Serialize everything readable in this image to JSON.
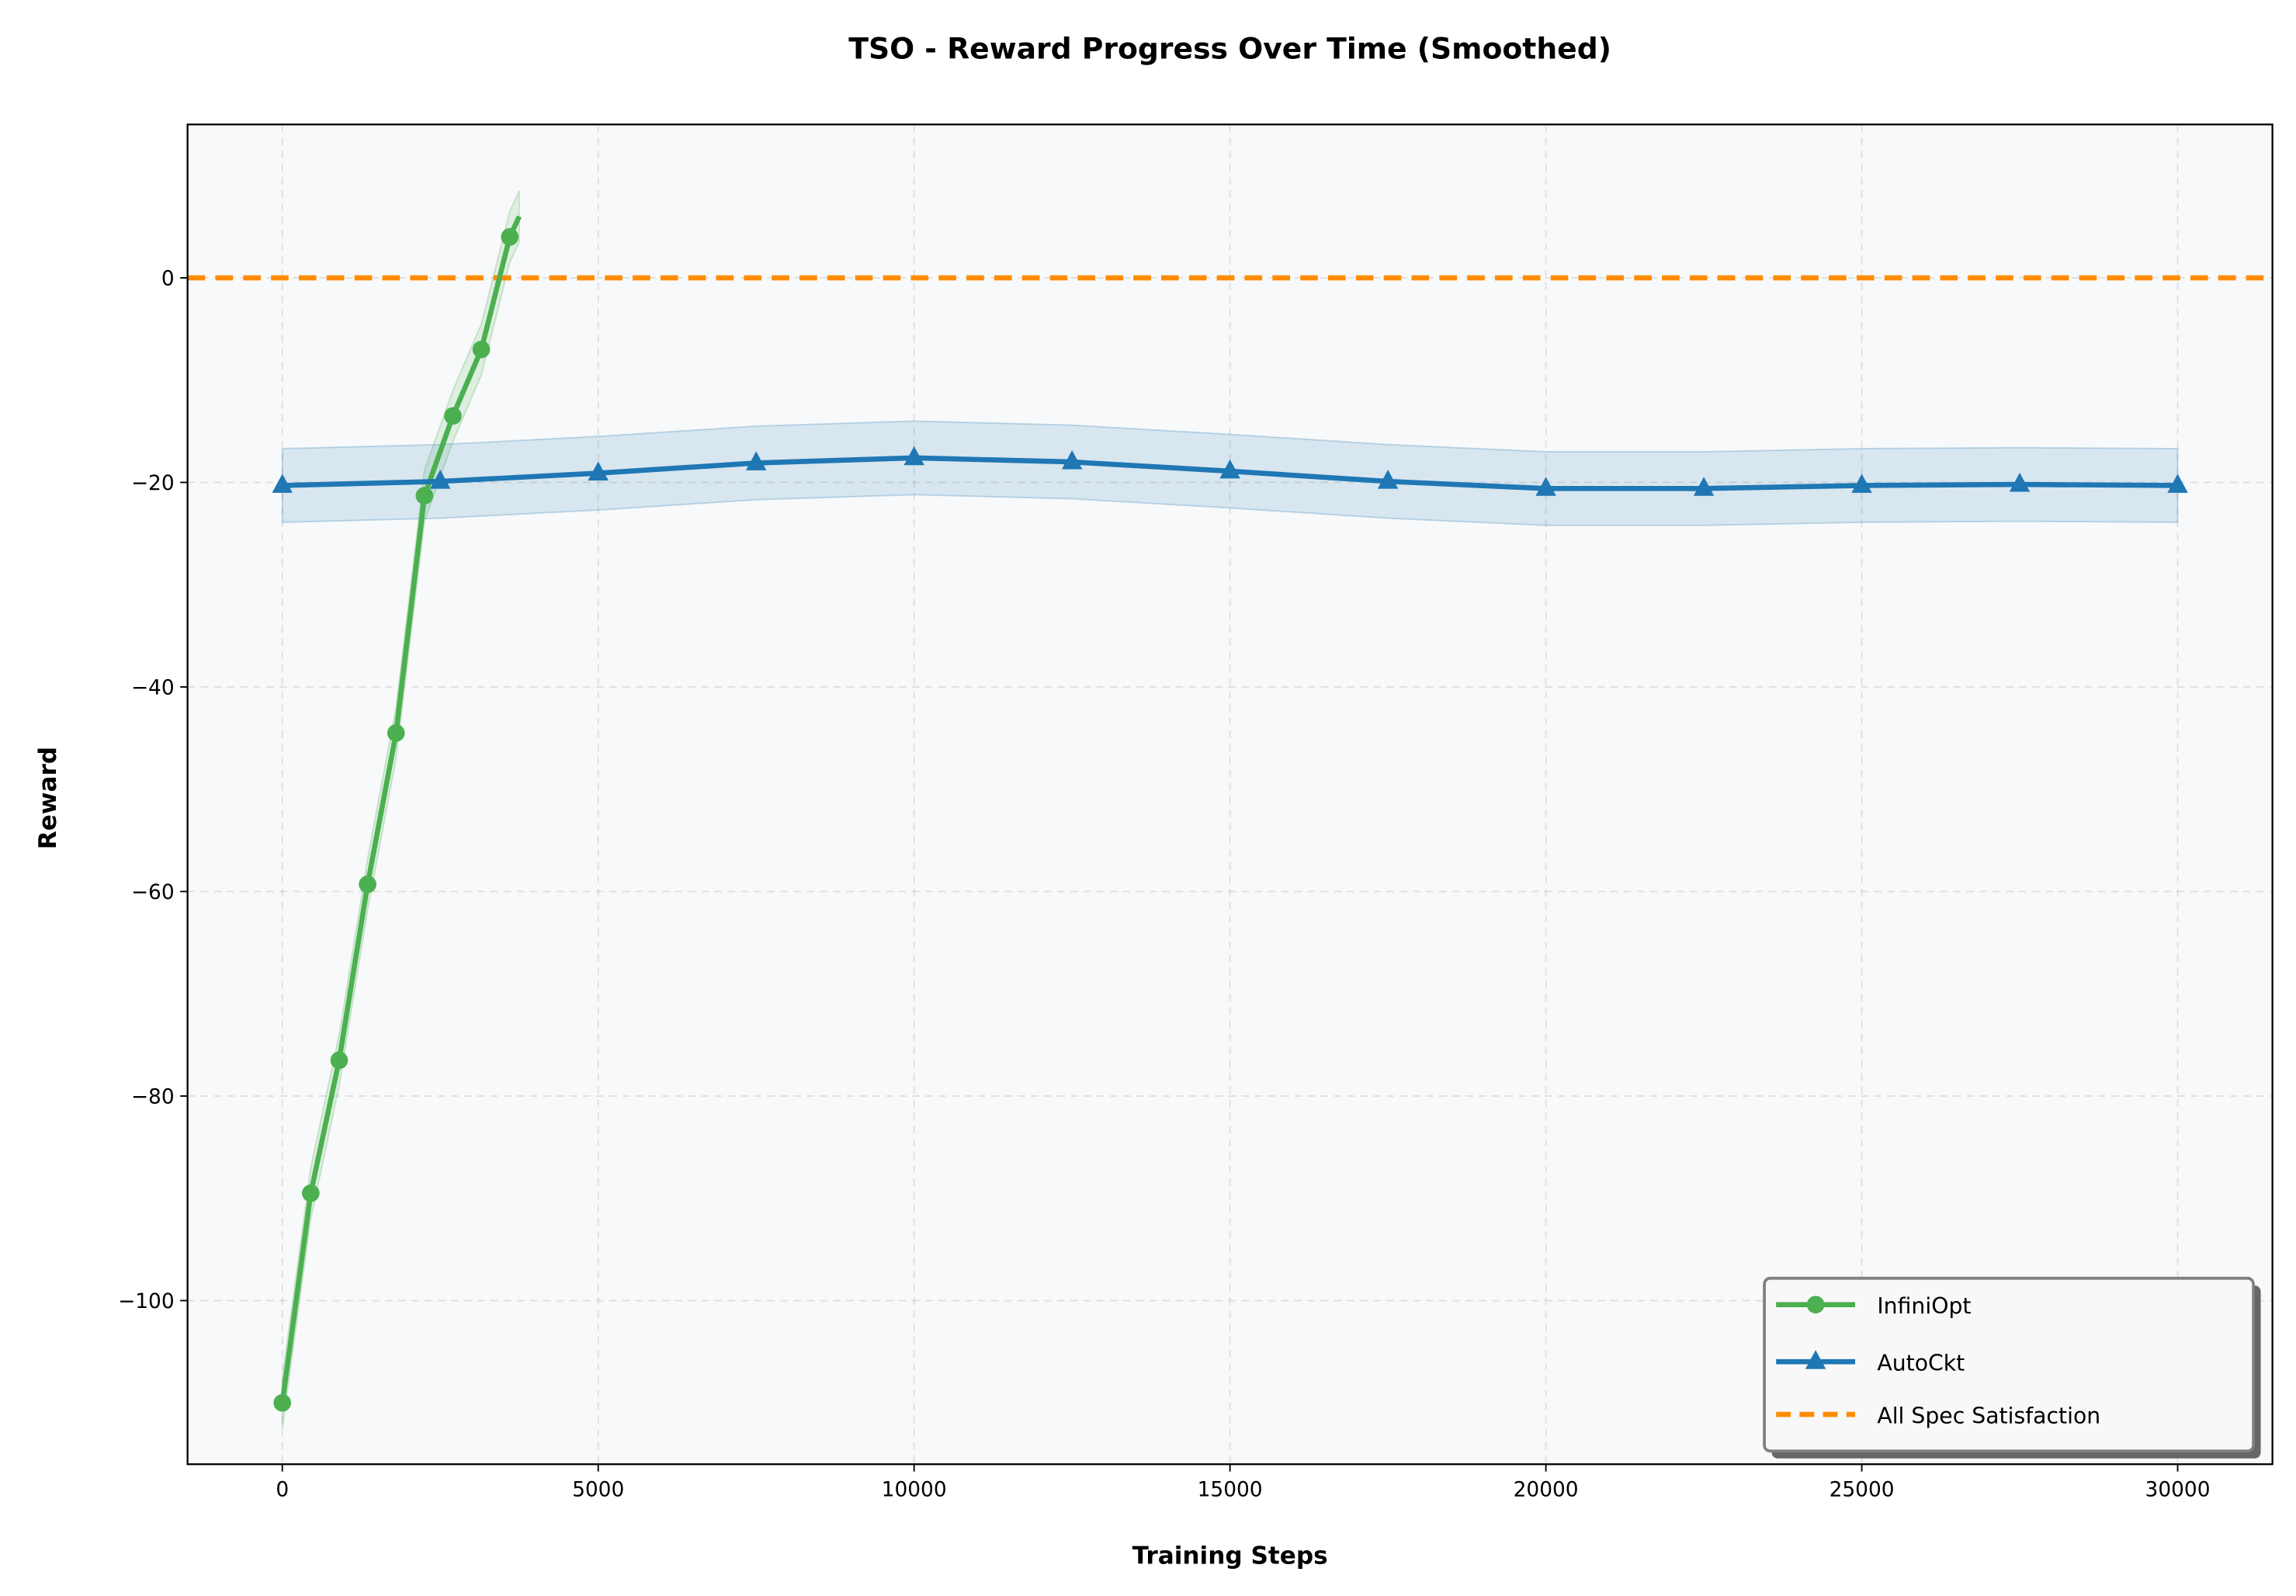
{
  "chart_data": {
    "type": "line",
    "title": "TSO - Reward Progress Over Time (Smoothed)",
    "xlabel": "Training Steps",
    "ylabel": "Reward",
    "xlim": [
      -1500,
      31500
    ],
    "ylim": [
      -116,
      15
    ],
    "xticks": [
      0,
      5000,
      10000,
      15000,
      20000,
      25000,
      30000
    ],
    "yticks": [
      -100,
      -80,
      -60,
      -40,
      -20,
      0
    ],
    "xtick_labels": [
      "0",
      "5000",
      "10000",
      "15000",
      "20000",
      "25000",
      "30000"
    ],
    "ytick_labels": [
      "−100",
      "−80",
      "−60",
      "−40",
      "−20",
      "0"
    ],
    "grid": true,
    "legend_placement": "bottom-right",
    "series": [
      {
        "name": "InfiniOpt",
        "color": "#4caf50",
        "marker": "circle",
        "x": [
          0,
          450,
          900,
          1350,
          1800,
          2250,
          2700,
          3150,
          3600,
          3750
        ],
        "y": [
          -110,
          -89.5,
          -76.5,
          -59.3,
          -44.5,
          -21.3,
          -13.5,
          -7,
          4,
          6
        ],
        "band": 2.5,
        "markers_at": [
          0,
          1,
          2,
          3,
          4,
          5,
          6,
          7,
          8
        ]
      },
      {
        "name": "AutoCkt",
        "color": "#1f77b4",
        "marker": "triangle",
        "x": [
          0,
          2500,
          5000,
          7500,
          10000,
          12500,
          15000,
          17500,
          20000,
          22500,
          25000,
          27500,
          30000
        ],
        "y": [
          -20.3,
          -19.9,
          -19.1,
          -18.1,
          -17.6,
          -18.0,
          -18.9,
          -19.9,
          -20.6,
          -20.6,
          -20.3,
          -20.2,
          -20.3
        ],
        "band": 3.6
      }
    ],
    "hlines": [
      {
        "name": "All Spec Satisfaction",
        "y": 0,
        "color": "#ff8c00",
        "style": "dashed"
      }
    ]
  }
}
